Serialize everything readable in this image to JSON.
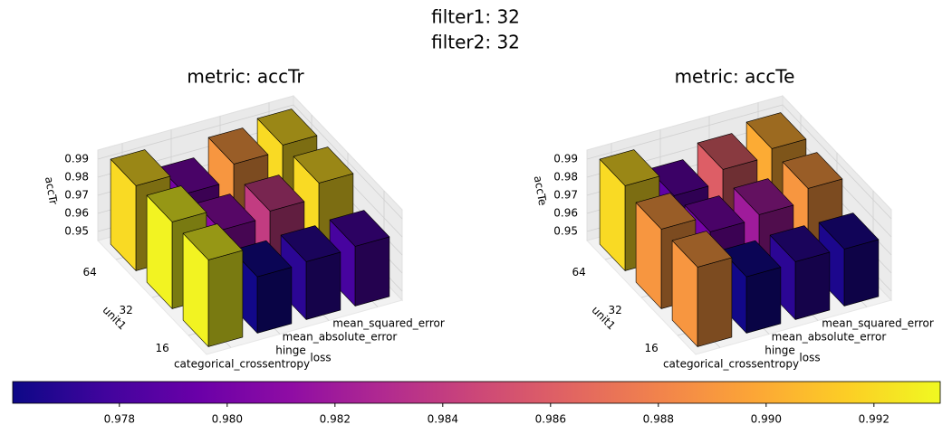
{
  "suptitle": [
    "filter1: 32",
    "filter2: 32"
  ],
  "chart_data": [
    {
      "type": "bar3d",
      "title": "metric: accTr",
      "xlabel": "loss",
      "ylabel": "unit1",
      "zlabel": "accTr",
      "x_categories": [
        "categorical_crossentropy",
        "hinge",
        "mean_absolute_error",
        "mean_squared_error"
      ],
      "y_categories": [
        16,
        32,
        64
      ],
      "values": [
        [
          0.993,
          0.9762,
          0.977,
          0.978
        ],
        [
          0.993,
          0.981,
          0.984,
          0.992
        ],
        [
          0.992,
          0.98,
          0.989,
          0.992
        ]
      ],
      "zlim": [
        0.945,
        0.995
      ],
      "zticks": [
        0.95,
        0.96,
        0.97,
        0.98,
        0.99
      ]
    },
    {
      "type": "bar3d",
      "title": "metric: accTe",
      "xlabel": "loss",
      "ylabel": "unit1",
      "zlabel": "accTe",
      "x_categories": [
        "categorical_crossentropy",
        "hinge",
        "mean_absolute_error",
        "mean_squared_error"
      ],
      "y_categories": [
        16,
        32,
        64
      ],
      "values": [
        [
          0.989,
          0.9762,
          0.977,
          0.9765
        ],
        [
          0.989,
          0.98,
          0.982,
          0.989
        ],
        [
          0.992,
          0.979,
          0.986,
          0.99
        ]
      ],
      "zlim": [
        0.945,
        0.995
      ],
      "zticks": [
        0.95,
        0.96,
        0.97,
        0.98,
        0.99
      ]
    }
  ],
  "colorbar": {
    "colormap": "plasma",
    "clim": [
      0.97602,
      0.99323
    ],
    "ticks": [
      0.978,
      {
        "value": 0.98,
        "label": "0.980"
      },
      0.982,
      0.984,
      0.986,
      0.988,
      {
        "value": 0.99,
        "label": "0.990"
      },
      0.992
    ]
  }
}
